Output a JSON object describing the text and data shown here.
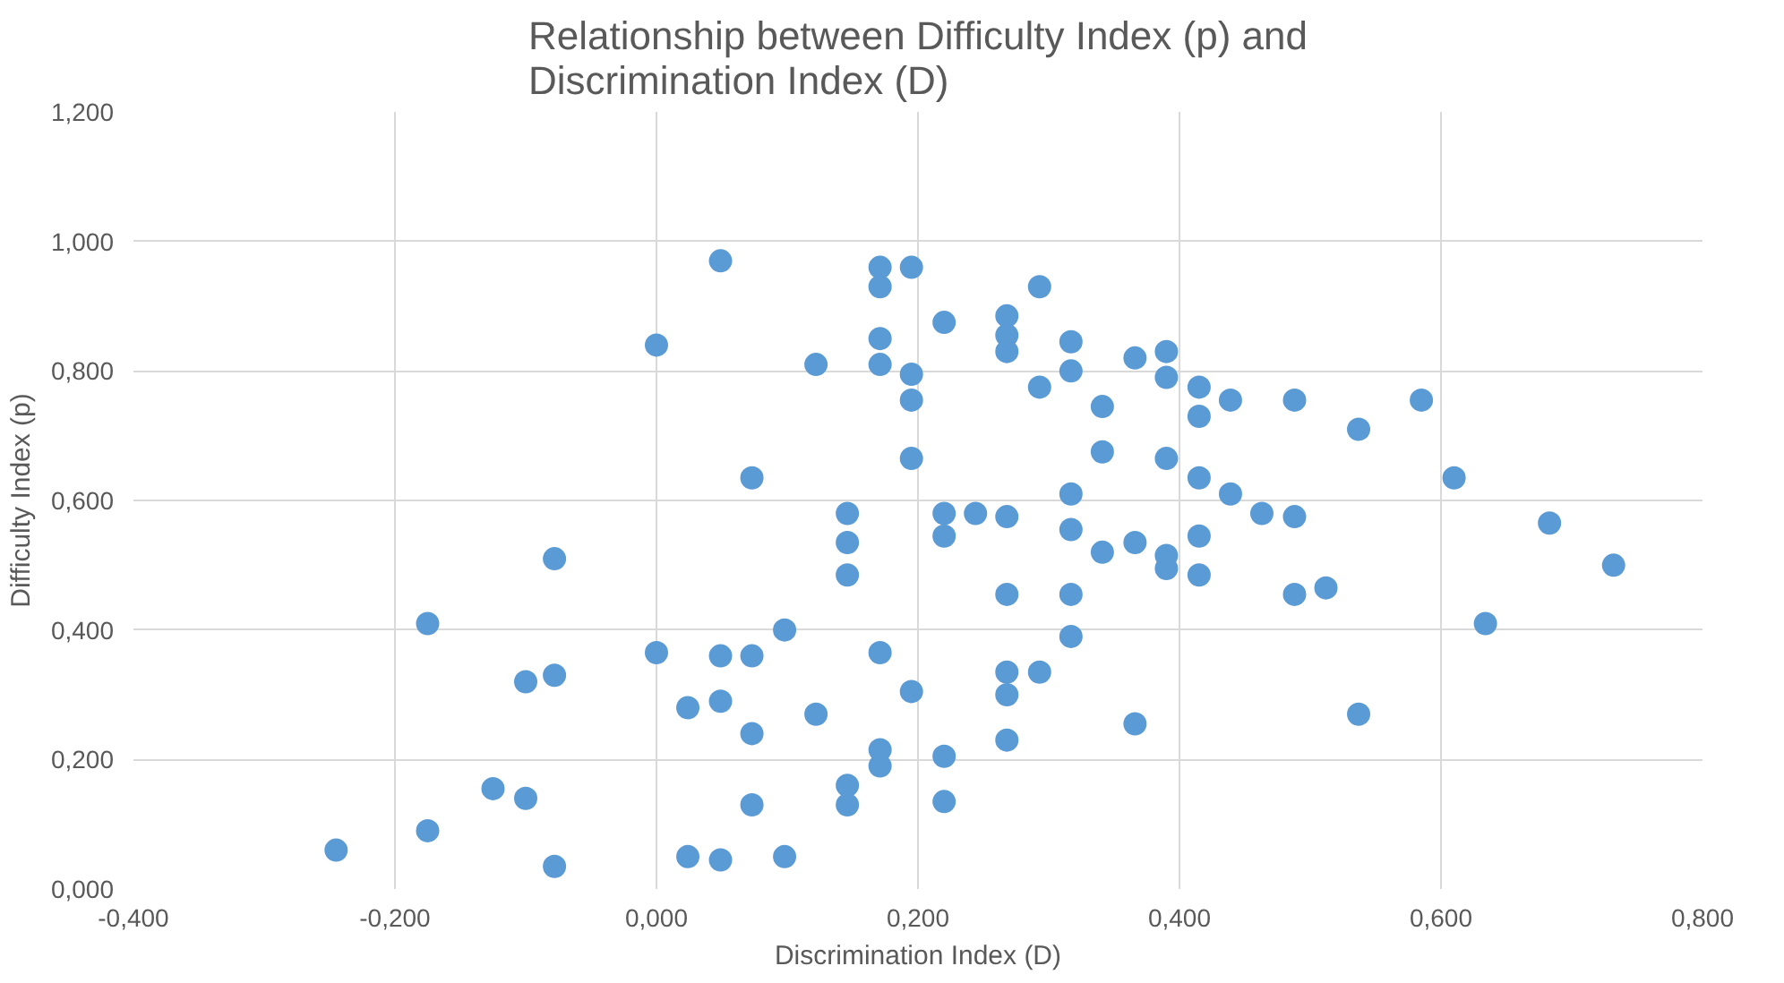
{
  "chart_data": {
    "type": "scatter",
    "title": "Relationship between Difficulty Index (p) and Discrimination Index (D)",
    "xlabel": "Discrimination Index (D)",
    "ylabel": "Difficulty Index (p)",
    "marker": "circle",
    "grid": true,
    "xlim": [
      -0.4,
      0.8
    ],
    "ylim": [
      0,
      1.2
    ],
    "xticks": [
      {
        "value": -0.4,
        "label": "-0,400"
      },
      {
        "value": -0.2,
        "label": "-0,200"
      },
      {
        "value": 0,
        "label": "0,000"
      },
      {
        "value": 0.2,
        "label": "0,200"
      },
      {
        "value": 0.4,
        "label": "0,400"
      },
      {
        "value": 0.6,
        "label": "0,600"
      },
      {
        "value": 0.8,
        "label": "0,800"
      }
    ],
    "yticks": [
      {
        "value": 0,
        "label": "0,000"
      },
      {
        "value": 0.2,
        "label": "0,200"
      },
      {
        "value": 0.4,
        "label": "0,400"
      },
      {
        "value": 0.6,
        "label": "0,600"
      },
      {
        "value": 0.8,
        "label": "0,800"
      },
      {
        "value": 1.0,
        "label": "1,000"
      },
      {
        "value": 1.2,
        "label": "1,200"
      }
    ],
    "series": [
      {
        "color": "#5b9bd5",
        "x": [
          -0.245,
          -0.175,
          -0.175,
          -0.125,
          -0.1,
          -0.1,
          -0.078,
          -0.078,
          -0.078,
          0,
          0,
          0.024,
          0.024,
          0.049,
          0.049,
          0.049,
          0.049,
          0.073,
          0.073,
          0.073,
          0.073,
          0.098,
          0.098,
          0.122,
          0.122,
          0.146,
          0.146,
          0.146,
          0.146,
          0.146,
          0.171,
          0.171,
          0.171,
          0.171,
          0.171,
          0.171,
          0.171,
          0.195,
          0.195,
          0.195,
          0.195,
          0.195,
          0.22,
          0.22,
          0.22,
          0.22,
          0.22,
          0.244,
          0.268,
          0.268,
          0.268,
          0.268,
          0.268,
          0.268,
          0.268,
          0.268,
          0.293,
          0.293,
          0.293,
          0.317,
          0.317,
          0.317,
          0.317,
          0.317,
          0.317,
          0.341,
          0.341,
          0.341,
          0.366,
          0.366,
          0.366,
          0.39,
          0.39,
          0.39,
          0.39,
          0.39,
          0.415,
          0.415,
          0.415,
          0.415,
          0.415,
          0.439,
          0.439,
          0.463,
          0.488,
          0.488,
          0.488,
          0.512,
          0.537,
          0.537,
          0.585,
          0.61,
          0.634,
          0.683,
          0.732
        ],
        "values": [
          0.06,
          0.09,
          0.41,
          0.155,
          0.14,
          0.32,
          0.035,
          0.33,
          0.51,
          0.365,
          0.84,
          0.28,
          0.05,
          0.97,
          0.36,
          0.29,
          0.045,
          0.635,
          0.36,
          0.24,
          0.13,
          0.4,
          0.05,
          0.81,
          0.27,
          0.58,
          0.535,
          0.485,
          0.16,
          0.13,
          0.96,
          0.93,
          0.85,
          0.81,
          0.365,
          0.215,
          0.19,
          0.96,
          0.795,
          0.755,
          0.665,
          0.305,
          0.875,
          0.58,
          0.545,
          0.205,
          0.135,
          0.58,
          0.885,
          0.855,
          0.83,
          0.575,
          0.455,
          0.335,
          0.3,
          0.23,
          0.93,
          0.775,
          0.335,
          0.845,
          0.8,
          0.61,
          0.555,
          0.455,
          0.39,
          0.745,
          0.675,
          0.52,
          0.82,
          0.535,
          0.255,
          0.83,
          0.79,
          0.665,
          0.515,
          0.495,
          0.775,
          0.73,
          0.635,
          0.545,
          0.485,
          0.755,
          0.61,
          0.58,
          0.755,
          0.575,
          0.455,
          0.465,
          0.71,
          0.27,
          0.755,
          0.635,
          0.41,
          0.565,
          0.5
        ]
      }
    ]
  }
}
